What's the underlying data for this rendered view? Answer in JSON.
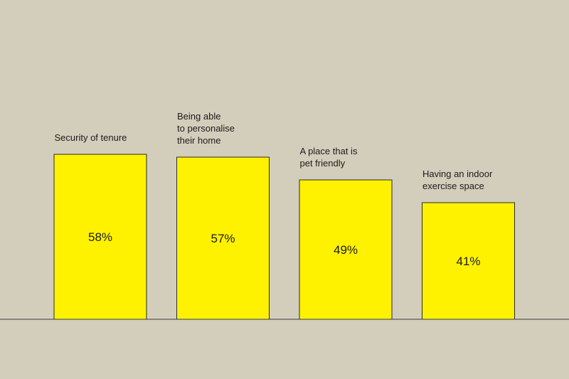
{
  "chart_data": {
    "type": "bar",
    "title": "",
    "xlabel": "",
    "ylabel": "",
    "ylim": [
      0,
      100
    ],
    "grid": false,
    "categories": [
      [
        "Security of tenure"
      ],
      [
        "Being able",
        "to personalise",
        "their home"
      ],
      [
        "A place that is",
        "pet friendly"
      ],
      [
        "Having an indoor",
        "exercise space"
      ]
    ],
    "values": [
      58,
      57,
      49,
      41
    ],
    "value_labels": [
      "58%",
      "57%",
      "49%",
      "41%"
    ],
    "colors": {
      "background": "#d3cebc",
      "bar_fill": "#fff200",
      "bar_stroke": "#2b2b2b",
      "baseline": "#3a3a3a",
      "text": "#1a1a1a"
    }
  }
}
